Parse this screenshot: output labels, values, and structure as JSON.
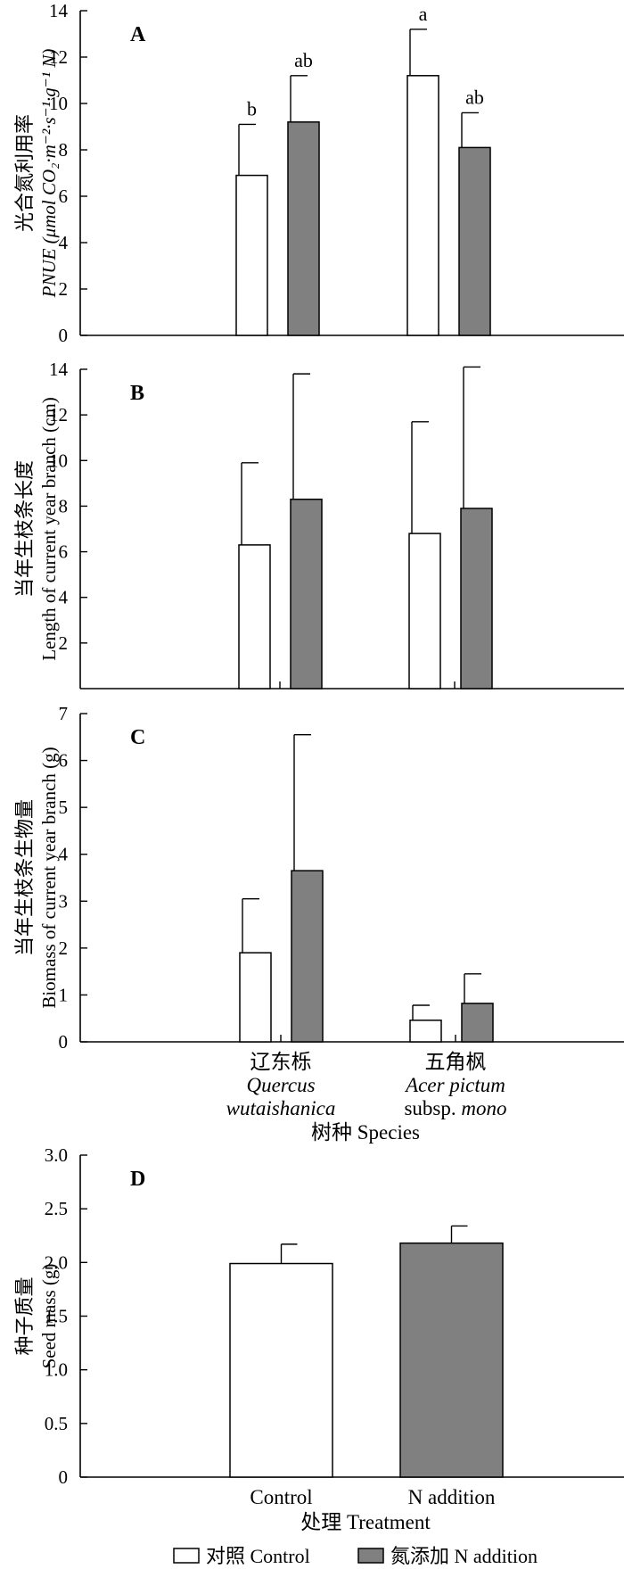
{
  "colors": {
    "control": "#ffffff",
    "n_addition": "#808080",
    "axis": "#000000"
  },
  "chart_data": [
    {
      "type": "bar",
      "panel": "A",
      "ylabel_cn": "光合氮利用率",
      "ylabel_en": "PNUE (μmol CO₂·m⁻²·s⁻¹·g⁻¹ N)",
      "ylim": [
        0,
        14
      ],
      "yticks": [
        "0",
        "2",
        "4",
        "6",
        "8",
        "10",
        "12",
        "14"
      ],
      "categories": [
        "辽东栎 Quercus wutaishanica",
        "五角枫 Acer pictum subsp. mono"
      ],
      "series": [
        {
          "name": "对照 Control",
          "values": [
            6.9,
            11.2
          ],
          "errors": [
            2.2,
            2.0
          ],
          "letters": [
            "b",
            "a"
          ]
        },
        {
          "name": "氮添加 N addition",
          "values": [
            9.2,
            8.1
          ],
          "errors": [
            2.0,
            1.5
          ],
          "letters": [
            "ab",
            "ab"
          ]
        }
      ]
    },
    {
      "type": "bar",
      "panel": "B",
      "ylabel_cn": "当年生枝条长度",
      "ylabel_en": "Length of current year branch (cm)",
      "ylim": [
        0,
        14
      ],
      "yticks": [
        "2",
        "4",
        "6",
        "8",
        "10",
        "12",
        "14"
      ],
      "categories": [
        "辽东栎 Quercus wutaishanica",
        "五角枫 Acer pictum subsp. mono"
      ],
      "series": [
        {
          "name": "对照 Control",
          "values": [
            6.3,
            6.8
          ],
          "errors": [
            3.6,
            4.9
          ]
        },
        {
          "name": "氮添加 N addition",
          "values": [
            8.3,
            7.9
          ],
          "errors": [
            5.5,
            6.2
          ]
        }
      ]
    },
    {
      "type": "bar",
      "panel": "C",
      "ylabel_cn": "当年生枝条生物量",
      "ylabel_en": "Biomass of current year branch (g)",
      "ylim": [
        0,
        7
      ],
      "yticks": [
        "0",
        "1",
        "2",
        "3",
        "4",
        "5",
        "6",
        "7"
      ],
      "categories": [
        "辽东栎 Quercus wutaishanica",
        "五角枫 Acer pictum subsp. mono"
      ],
      "category_labels": [
        {
          "cn": "辽东栎",
          "latin1": "Quercus",
          "latin2": "wutaishanica"
        },
        {
          "cn": "五角枫",
          "latin1": "Acer pictum",
          "latin2_plain": "subsp. ",
          "latin2_italic": "mono"
        }
      ],
      "xlabel": "树种 Species",
      "series": [
        {
          "name": "对照 Control",
          "values": [
            1.9,
            0.46
          ],
          "errors": [
            1.15,
            0.32
          ]
        },
        {
          "name": "氮添加 N addition",
          "values": [
            3.65,
            0.82
          ],
          "errors": [
            2.9,
            0.63
          ]
        }
      ]
    },
    {
      "type": "bar",
      "panel": "D",
      "ylabel_cn": "种子质量",
      "ylabel_en": "Seed mass (g)",
      "ylim": [
        0,
        3.0
      ],
      "yticks": [
        "0",
        "0.5",
        "1.0",
        "1.5",
        "2.0",
        "2.5",
        "3.0"
      ],
      "categories": [
        "Control",
        "N addition"
      ],
      "xlabel": "处理 Treatment",
      "series": [
        {
          "name": "Seed mass",
          "values": [
            1.99,
            2.18
          ],
          "errors": [
            0.18,
            0.16
          ],
          "colors": [
            "#ffffff",
            "#808080"
          ]
        }
      ]
    }
  ],
  "legend": {
    "items": [
      {
        "label": "对照 Control",
        "color": "#ffffff"
      },
      {
        "label": "氮添加 N addition",
        "color": "#808080"
      }
    ]
  }
}
